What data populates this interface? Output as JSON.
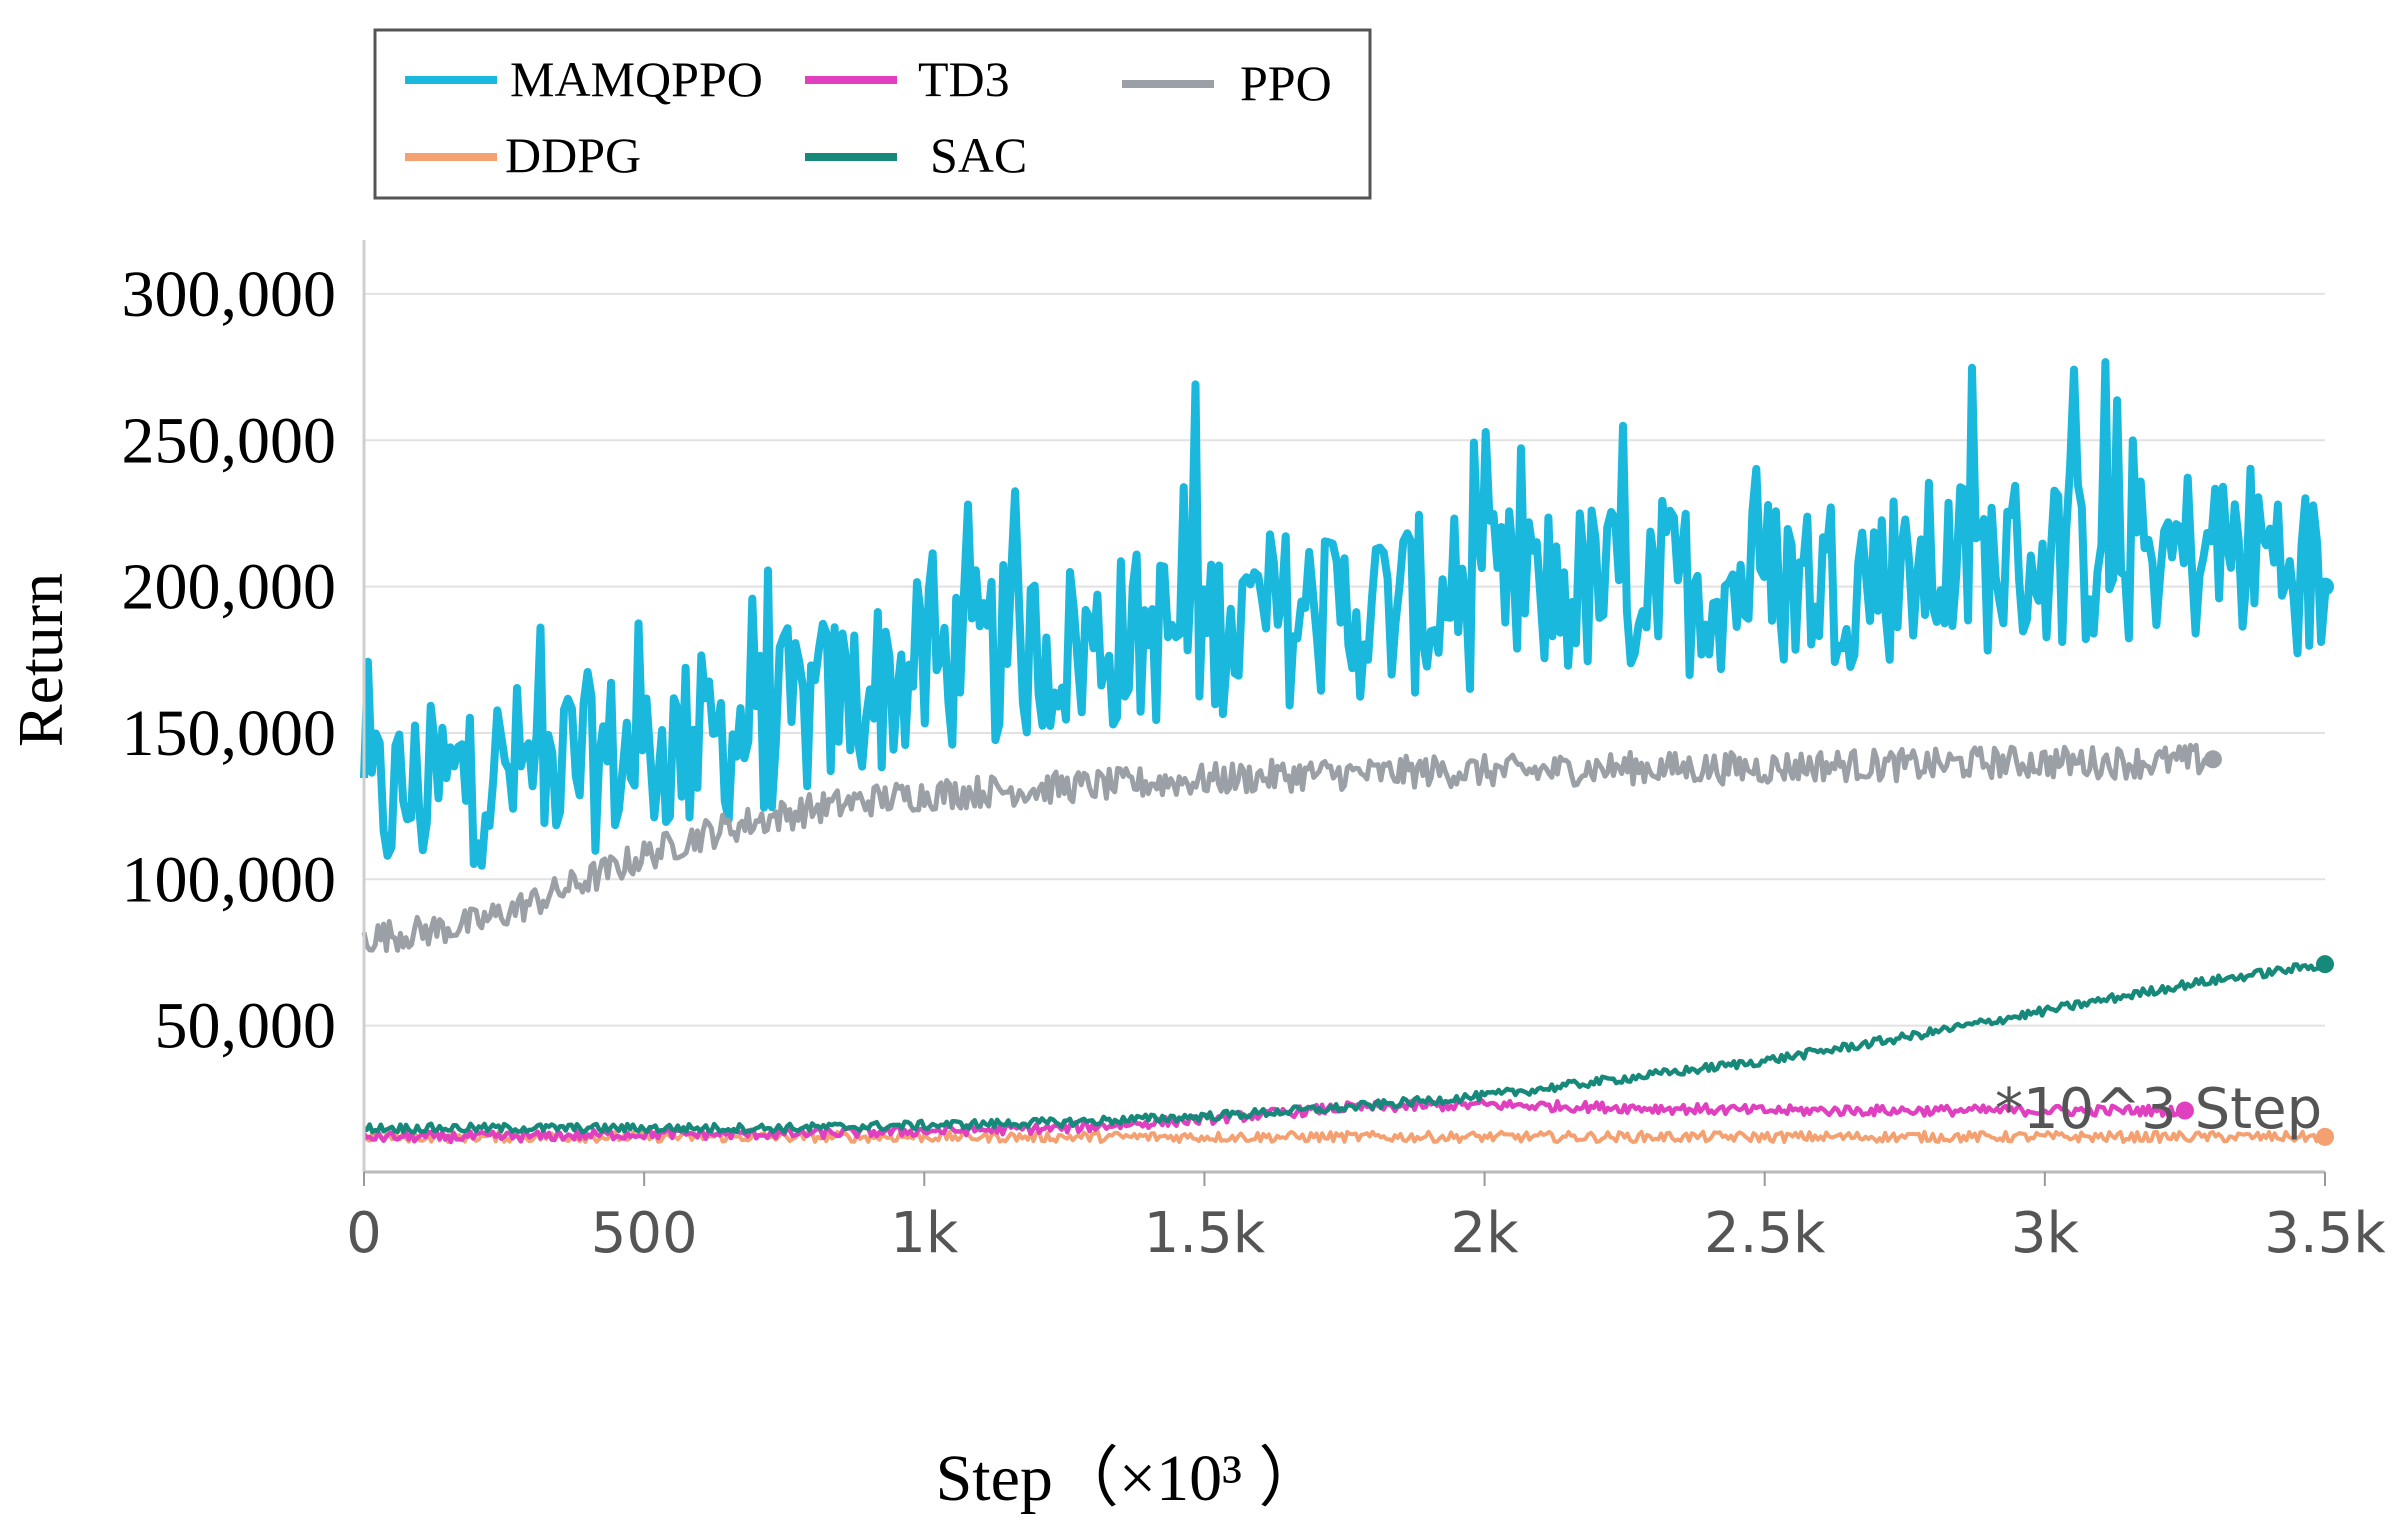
{
  "chart_data": {
    "type": "line",
    "title": "",
    "xlabel": "Step（×10³ ）",
    "ylabel": "Return",
    "xlim": [
      0,
      3500
    ],
    "ylim": [
      0,
      315000
    ],
    "x_ticks": [
      0,
      500,
      1000,
      1500,
      2000,
      2500,
      3000,
      3500
    ],
    "x_tick_labels": [
      "0",
      "500",
      "1k",
      "1.5k",
      "2k",
      "2.5k",
      "3k",
      "3.5k"
    ],
    "y_ticks": [
      50000,
      100000,
      150000,
      200000,
      250000,
      300000
    ],
    "y_tick_labels": [
      "50,000",
      "100,000",
      "150,000",
      "200,000",
      "250,000",
      "300,000"
    ],
    "annotation": "*10^3 Step",
    "grid": true,
    "legend_position": "top-left",
    "series": [
      {
        "name": "MAMQPPO",
        "color": "#1ab8dc",
        "x": [
          0,
          100,
          200,
          300,
          400,
          500,
          600,
          700,
          800,
          900,
          1000,
          1100,
          1200,
          1300,
          1400,
          1500,
          1600,
          1700,
          1800,
          1900,
          2000,
          2100,
          2200,
          2300,
          2400,
          2500,
          2600,
          2700,
          2800,
          2900,
          3000,
          3100,
          3200,
          3300,
          3400,
          3500
        ],
        "values": [
          125000,
          130000,
          135000,
          138000,
          140000,
          143000,
          147000,
          152000,
          158000,
          165000,
          172000,
          176000,
          178000,
          180000,
          183000,
          186000,
          189000,
          191000,
          192000,
          194000,
          196000,
          198000,
          199000,
          200000,
          201000,
          202000,
          203000,
          204000,
          206000,
          208000,
          209000,
          210000,
          211000,
          212000,
          213000,
          200000
        ]
      },
      {
        "name": "PPO",
        "color": "#9aa0a6",
        "x": [
          0,
          100,
          200,
          300,
          400,
          500,
          600,
          700,
          800,
          900,
          1000,
          1100,
          1200,
          1300,
          1400,
          1500,
          1600,
          1700,
          1800,
          1900,
          2000,
          2100,
          2200,
          2300,
          2400,
          2500,
          2600,
          2700,
          2800,
          2900,
          3000,
          3100,
          3200,
          3300
        ],
        "values": [
          80000,
          82000,
          85000,
          92000,
          100000,
          108000,
          115000,
          120000,
          124000,
          127000,
          129000,
          130000,
          131000,
          132000,
          133000,
          134000,
          135000,
          136000,
          136000,
          137000,
          137000,
          137000,
          138000,
          138000,
          138000,
          138000,
          139000,
          139000,
          139000,
          140000,
          140000,
          140000,
          140000,
          141000
        ]
      },
      {
        "name": "SAC",
        "color": "#17897a",
        "x": [
          0,
          250,
          500,
          750,
          1000,
          1250,
          1500,
          1750,
          2000,
          2250,
          2500,
          2750,
          3000,
          3250,
          3500
        ],
        "values": [
          15000,
          15000,
          15000,
          15000,
          16000,
          17000,
          19000,
          22000,
          26000,
          32000,
          38000,
          46000,
          55000,
          64000,
          71000
        ]
      },
      {
        "name": "TD3",
        "color": "#e040c0",
        "x": [
          0,
          250,
          500,
          750,
          1000,
          1250,
          1500,
          1750,
          2000,
          2250,
          2500,
          2750,
          3000,
          3250
        ],
        "values": [
          12000,
          12000,
          13000,
          13000,
          14000,
          15000,
          18000,
          22000,
          23000,
          22000,
          21000,
          21000,
          21000,
          21000
        ]
      },
      {
        "name": "DDPG",
        "color": "#f4a070",
        "x": [
          0,
          500,
          1000,
          1500,
          2000,
          2500,
          3000,
          3500
        ],
        "values": [
          12000,
          12000,
          12000,
          12000,
          12000,
          12000,
          12000,
          12000
        ]
      }
    ]
  }
}
